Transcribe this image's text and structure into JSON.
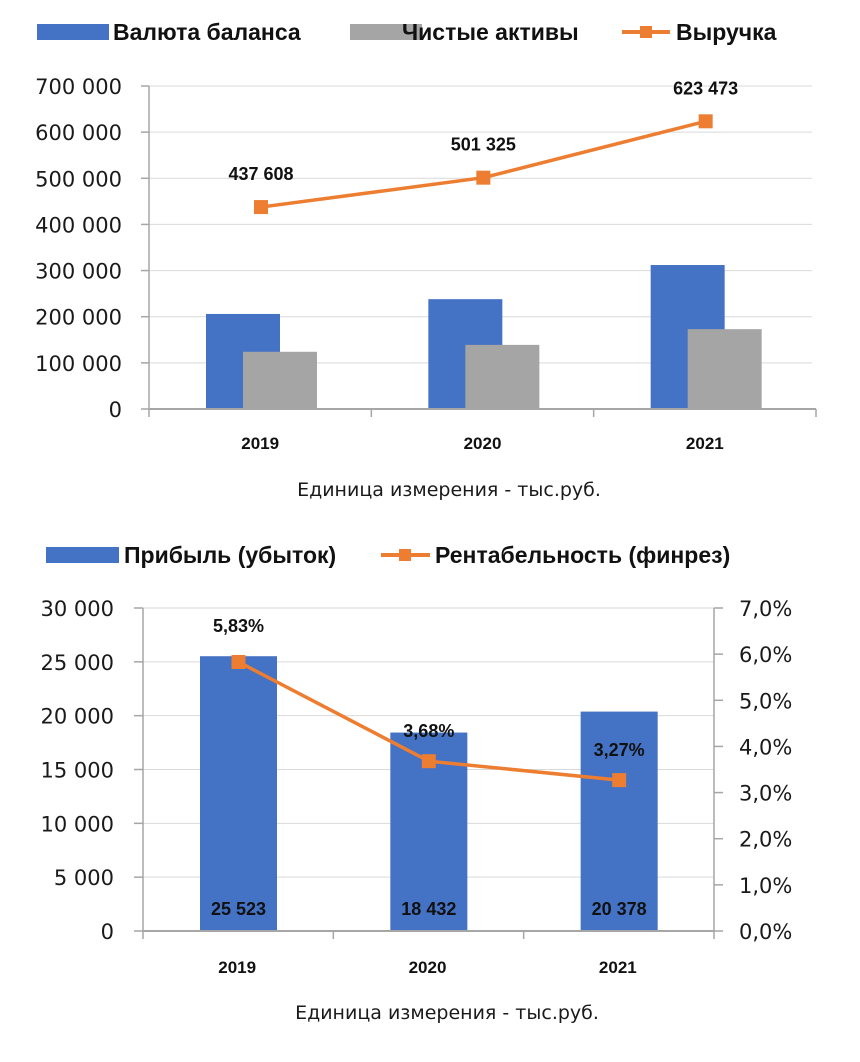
{
  "chart_data": [
    {
      "type": "bar",
      "title": "",
      "xlabel": "Единица измерения - тыс.руб.",
      "ylabel": "",
      "categories": [
        "2019",
        "2020",
        "2021"
      ],
      "ylim": [
        0,
        700000
      ],
      "yticks": [
        0,
        100000,
        200000,
        300000,
        400000,
        500000,
        600000,
        700000
      ],
      "ytick_labels": [
        "0",
        "100 000",
        "200 000",
        "300 000",
        "400 000",
        "500 000",
        "600 000",
        "700 000"
      ],
      "grid": true,
      "legend_position": "top",
      "series": [
        {
          "name": "Валюта баланса",
          "kind": "bar",
          "color": "#4472C4",
          "values": [
            206000,
            238000,
            312000
          ]
        },
        {
          "name": "Чистые активы",
          "kind": "bar",
          "color": "#A5A5A5",
          "values": [
            124000,
            139000,
            173000
          ]
        },
        {
          "name": "Выручка",
          "kind": "line",
          "color": "#ED7D31",
          "values": [
            437608,
            501325,
            623473
          ],
          "data_labels": [
            "437 608",
            "501 325",
            "623 473"
          ]
        }
      ]
    },
    {
      "type": "bar",
      "title": "",
      "xlabel": "Единица измерения - тыс.руб.",
      "ylabel": "",
      "categories": [
        "2019",
        "2020",
        "2021"
      ],
      "ylim": [
        0,
        30000
      ],
      "yticks": [
        0,
        5000,
        10000,
        15000,
        20000,
        25000,
        30000
      ],
      "ytick_labels": [
        "0",
        "5 000",
        "10 000",
        "15 000",
        "20 000",
        "25 000",
        "30 000"
      ],
      "y2lim": [
        0,
        7.0
      ],
      "y2ticks": [
        0,
        1,
        2,
        3,
        4,
        5,
        6,
        7
      ],
      "y2tick_labels": [
        "0,0%",
        "1,0%",
        "2,0%",
        "3,0%",
        "4,0%",
        "5,0%",
        "6,0%",
        "7,0%"
      ],
      "grid": true,
      "legend_position": "top",
      "series": [
        {
          "name": "Прибыль (убыток)",
          "kind": "bar",
          "color": "#4472C4",
          "values": [
            25523,
            18432,
            20378
          ],
          "data_labels": [
            "25 523",
            "18 432",
            "20 378"
          ]
        },
        {
          "name": "Рентабельность (финрез)",
          "kind": "line",
          "axis": "right",
          "color": "#ED7D31",
          "values": [
            5.83,
            3.68,
            3.27
          ],
          "data_labels": [
            "5,83%",
            "3,68%",
            "3,27%"
          ]
        }
      ]
    }
  ]
}
